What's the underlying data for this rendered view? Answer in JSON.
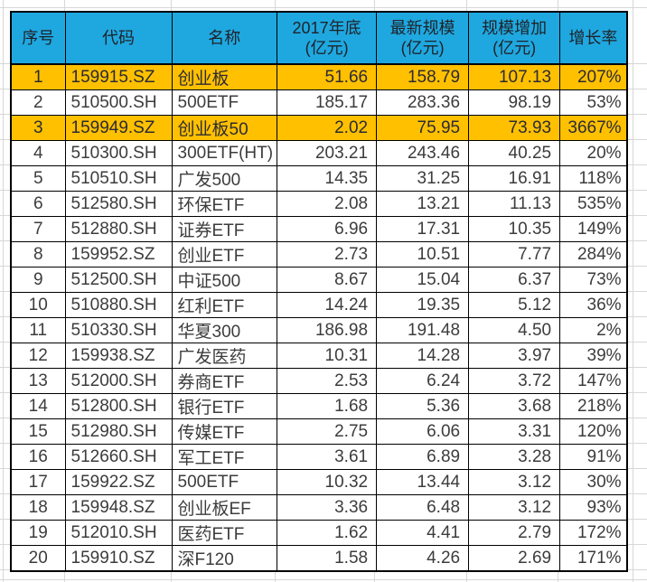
{
  "colors": {
    "header_bg": "#1FA8E0",
    "highlight": "#FFC000",
    "border": "#000000",
    "gridline": "#D7D7D7",
    "text": "#3C3C3C",
    "header_text": "#1F2228"
  },
  "table": {
    "headers": [
      "序号",
      "代码",
      "名称",
      "2017年底\n(亿元)",
      "最新规模\n(亿元)",
      "规模增加\n(亿元)",
      "增长率"
    ],
    "rows": [
      {
        "highlight": true,
        "cells": [
          "1",
          "159915.SZ",
          "创业板",
          "51.66",
          "158.79",
          "107.13",
          "207%"
        ]
      },
      {
        "highlight": false,
        "cells": [
          "2",
          "510500.SH",
          "500ETF",
          "185.17",
          "283.36",
          "98.19",
          "53%"
        ]
      },
      {
        "highlight": true,
        "cells": [
          "3",
          "159949.SZ",
          "创业板50",
          "2.02",
          "75.95",
          "73.93",
          "3667%"
        ]
      },
      {
        "highlight": false,
        "cells": [
          "4",
          "510300.SH",
          "300ETF(HT)",
          "203.21",
          "243.46",
          "40.25",
          "20%"
        ]
      },
      {
        "highlight": false,
        "cells": [
          "5",
          "510510.SH",
          "广发500",
          "14.35",
          "31.25",
          "16.91",
          "118%"
        ]
      },
      {
        "highlight": false,
        "cells": [
          "6",
          "512580.SH",
          "环保ETF",
          "2.08",
          "13.21",
          "11.13",
          "535%"
        ]
      },
      {
        "highlight": false,
        "cells": [
          "7",
          "512880.SH",
          "证券ETF",
          "6.96",
          "17.31",
          "10.35",
          "149%"
        ]
      },
      {
        "highlight": false,
        "cells": [
          "8",
          "159952.SZ",
          "创业ETF",
          "2.73",
          "10.51",
          "7.77",
          "284%"
        ]
      },
      {
        "highlight": false,
        "cells": [
          "9",
          "512500.SH",
          "中证500",
          "8.67",
          "15.04",
          "6.37",
          "73%"
        ]
      },
      {
        "highlight": false,
        "cells": [
          "10",
          "510880.SH",
          "红利ETF",
          "14.24",
          "19.35",
          "5.12",
          "36%"
        ]
      },
      {
        "highlight": false,
        "cells": [
          "11",
          "510330.SH",
          "华夏300",
          "186.98",
          "191.48",
          "4.50",
          "2%"
        ]
      },
      {
        "highlight": false,
        "cells": [
          "12",
          "159938.SZ",
          "广发医药",
          "10.31",
          "14.28",
          "3.97",
          "39%"
        ]
      },
      {
        "highlight": false,
        "cells": [
          "13",
          "512000.SH",
          "券商ETF",
          "2.53",
          "6.24",
          "3.72",
          "147%"
        ]
      },
      {
        "highlight": false,
        "cells": [
          "14",
          "512800.SH",
          "银行ETF",
          "1.68",
          "5.36",
          "3.68",
          "218%"
        ]
      },
      {
        "highlight": false,
        "cells": [
          "15",
          "512980.SH",
          "传媒ETF",
          "2.75",
          "6.06",
          "3.31",
          "120%"
        ]
      },
      {
        "highlight": false,
        "cells": [
          "16",
          "512660.SH",
          "军工ETF",
          "3.61",
          "6.89",
          "3.28",
          "91%"
        ]
      },
      {
        "highlight": false,
        "cells": [
          "17",
          "159922.SZ",
          "500ETF",
          "10.32",
          "13.44",
          "3.12",
          "30%"
        ]
      },
      {
        "highlight": false,
        "cells": [
          "18",
          "159948.SZ",
          "创业板EF",
          "3.36",
          "6.48",
          "3.12",
          "93%"
        ]
      },
      {
        "highlight": false,
        "cells": [
          "19",
          "512010.SH",
          "医药ETF",
          "1.62",
          "4.41",
          "2.79",
          "172%"
        ]
      },
      {
        "highlight": false,
        "cells": [
          "20",
          "159910.SZ",
          "深F120",
          "1.58",
          "4.26",
          "2.69",
          "171%"
        ]
      }
    ]
  }
}
